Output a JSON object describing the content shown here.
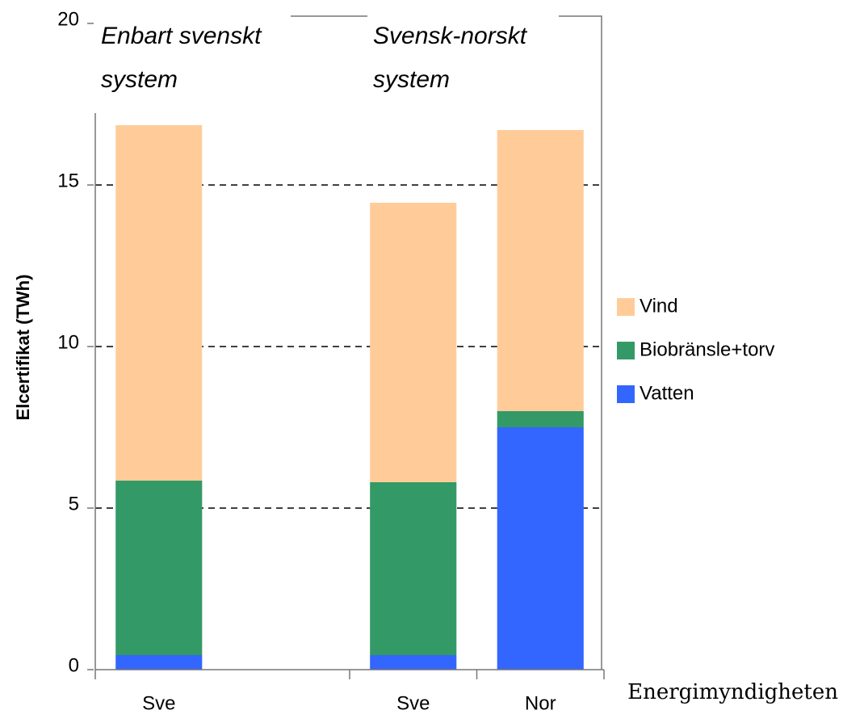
{
  "chart_data": {
    "type": "stacked_bar",
    "ylabel": "Elcertifikat (TWh)",
    "categories": [
      "Sve",
      null,
      "Sve",
      "Nor"
    ],
    "series": [
      {
        "name": "Vatten",
        "color": "#3366ff",
        "values": [
          0.45,
          null,
          0.45,
          7.5
        ]
      },
      {
        "name": "Biobränsle+torv",
        "color": "#339966",
        "values": [
          5.4,
          null,
          5.35,
          0.5
        ]
      },
      {
        "name": "Vind",
        "color": "#ffcc99",
        "values": [
          11.0,
          null,
          8.65,
          8.7
        ]
      }
    ],
    "ylim": [
      0,
      20
    ],
    "yticks": [
      0,
      5,
      10,
      15,
      20
    ],
    "grid": true,
    "annotations": [
      [
        "Enbart svenskt",
        "system"
      ],
      [
        "Svensk-norskt",
        "system"
      ]
    ],
    "source": "Energimyndigheten"
  }
}
